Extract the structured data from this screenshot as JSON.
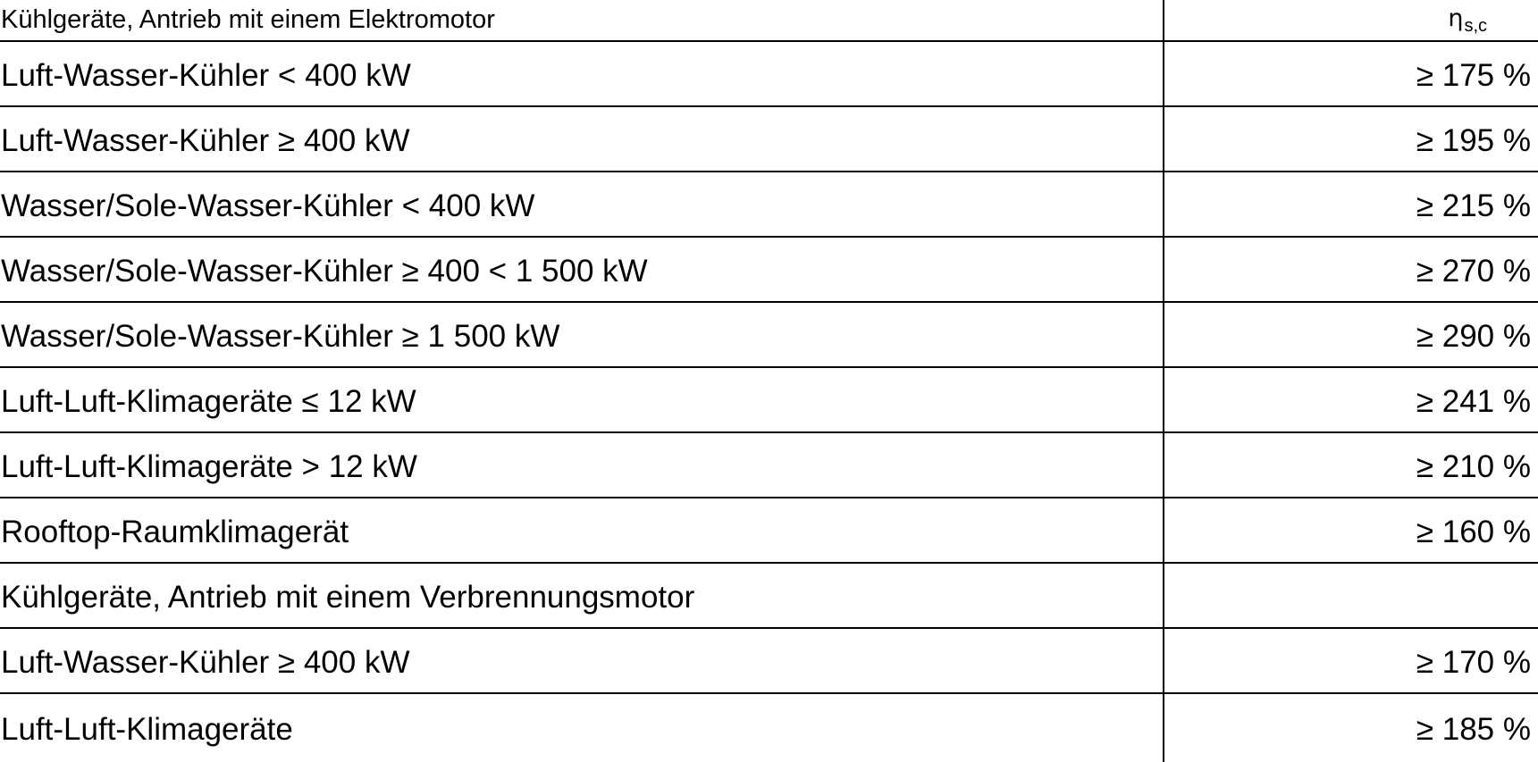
{
  "table": {
    "header": {
      "label": "Kühlgeräte, Antrieb mit einem Elektromotor",
      "value_symbol": "η",
      "value_subscript": "s,c"
    },
    "rows": [
      {
        "label": "Luft-Wasser-Kühler < 400 kW",
        "value": "≥ 175 %"
      },
      {
        "label": "Luft-Wasser-Kühler ≥ 400 kW",
        "value": "≥ 195 %"
      },
      {
        "label": "Wasser/Sole-Wasser-Kühler < 400 kW",
        "value": "≥ 215 %"
      },
      {
        "label": "Wasser/Sole-Wasser-Kühler ≥ 400 < 1 500 kW",
        "value": "≥ 270 %"
      },
      {
        "label": "Wasser/Sole-Wasser-Kühler ≥ 1 500 kW",
        "value": "≥ 290 %"
      },
      {
        "label": "Luft-Luft-Klimageräte ≤ 12 kW",
        "value": "≥ 241 %"
      },
      {
        "label": "Luft-Luft-Klimageräte > 12 kW",
        "value": "≥ 210 %"
      },
      {
        "label": "Rooftop-Raumklimagerät",
        "value": "≥ 160 %"
      },
      {
        "label": "Kühlgeräte, Antrieb mit einem Verbrennungsmotor",
        "value": ""
      },
      {
        "label": "Luft-Wasser-Kühler ≥ 400 kW",
        "value": "≥ 170 %"
      },
      {
        "label": "Luft-Luft-Klimageräte",
        "value": "≥ 185 %"
      }
    ]
  }
}
